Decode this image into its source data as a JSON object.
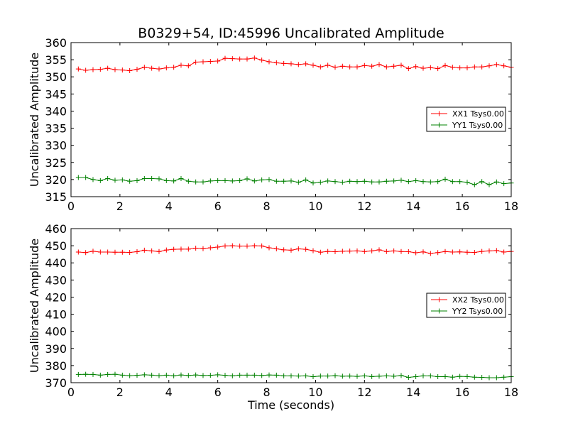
{
  "figure": {
    "title": "B0329+54, ID:45996 Uncalibrated Amplitude",
    "xlabel": "Time (seconds)"
  },
  "chart_data": [
    {
      "type": "line",
      "title": "B0329+54, ID:45996 Uncalibrated Amplitude",
      "xlabel": "",
      "ylabel": "Uncalibrated Amplitude",
      "xlim": [
        0,
        18
      ],
      "ylim": [
        315,
        360
      ],
      "xticks": [
        0,
        2,
        4,
        6,
        8,
        10,
        12,
        14,
        16,
        18
      ],
      "yticks": [
        315,
        320,
        325,
        330,
        335,
        340,
        345,
        350,
        355,
        360
      ],
      "grid": false,
      "legend_position": "center-right",
      "x": [
        0.3,
        0.6,
        0.9,
        1.2,
        1.5,
        1.8,
        2.1,
        2.4,
        2.7,
        3.0,
        3.3,
        3.6,
        3.9,
        4.2,
        4.5,
        4.8,
        5.1,
        5.4,
        5.7,
        6.0,
        6.3,
        6.6,
        6.9,
        7.2,
        7.5,
        7.8,
        8.1,
        8.4,
        8.7,
        9.0,
        9.3,
        9.6,
        9.9,
        10.2,
        10.5,
        10.8,
        11.1,
        11.4,
        11.7,
        12.0,
        12.3,
        12.6,
        12.9,
        13.2,
        13.5,
        13.8,
        14.1,
        14.4,
        14.7,
        15.0,
        15.3,
        15.6,
        15.9,
        16.2,
        16.5,
        16.8,
        17.1,
        17.4,
        17.7,
        18.0
      ],
      "series": [
        {
          "name": "XX1 Tsys0.00",
          "color": "#ff0000",
          "values": [
            352.3,
            351.9,
            352.1,
            352.2,
            352.5,
            352.1,
            352.0,
            351.8,
            352.2,
            352.8,
            352.5,
            352.3,
            352.6,
            352.8,
            353.4,
            353.2,
            354.3,
            354.4,
            354.5,
            354.6,
            355.4,
            355.3,
            355.2,
            355.2,
            355.5,
            354.9,
            354.4,
            354.1,
            353.9,
            353.8,
            353.6,
            353.8,
            353.4,
            352.9,
            353.4,
            352.8,
            353.1,
            352.9,
            352.9,
            353.3,
            353.1,
            353.6,
            352.9,
            353.1,
            353.4,
            352.4,
            353.0,
            352.5,
            352.7,
            352.4,
            353.3,
            352.8,
            352.6,
            352.6,
            352.9,
            352.9,
            353.2,
            353.6,
            353.2,
            352.8
          ]
        },
        {
          "name": "YY1 Tsys0.00",
          "color": "#008000",
          "values": [
            320.6,
            320.6,
            320.0,
            319.7,
            320.3,
            319.8,
            319.9,
            319.5,
            319.7,
            320.3,
            320.3,
            320.2,
            319.7,
            319.6,
            320.3,
            319.5,
            319.3,
            319.3,
            319.6,
            319.7,
            319.7,
            319.6,
            319.7,
            320.2,
            319.6,
            319.9,
            320.0,
            319.5,
            319.5,
            319.6,
            319.2,
            319.9,
            319.0,
            319.2,
            319.6,
            319.4,
            319.2,
            319.5,
            319.4,
            319.5,
            319.3,
            319.3,
            319.5,
            319.6,
            319.8,
            319.4,
            319.7,
            319.4,
            319.3,
            319.4,
            320.1,
            319.4,
            319.4,
            319.2,
            318.5,
            319.4,
            318.5,
            319.3,
            318.8,
            319.0
          ]
        }
      ]
    },
    {
      "type": "line",
      "title": "",
      "xlabel": "Time (seconds)",
      "ylabel": "Uncalibrated Amplitude",
      "xlim": [
        0,
        18
      ],
      "ylim": [
        370,
        460
      ],
      "xticks": [
        0,
        2,
        4,
        6,
        8,
        10,
        12,
        14,
        16,
        18
      ],
      "yticks": [
        370,
        380,
        390,
        400,
        410,
        420,
        430,
        440,
        450,
        460
      ],
      "grid": false,
      "legend_position": "center-right",
      "x": [
        0.3,
        0.6,
        0.9,
        1.2,
        1.5,
        1.8,
        2.1,
        2.4,
        2.7,
        3.0,
        3.3,
        3.6,
        3.9,
        4.2,
        4.5,
        4.8,
        5.1,
        5.4,
        5.7,
        6.0,
        6.3,
        6.6,
        6.9,
        7.2,
        7.5,
        7.8,
        8.1,
        8.4,
        8.7,
        9.0,
        9.3,
        9.6,
        9.9,
        10.2,
        10.5,
        10.8,
        11.1,
        11.4,
        11.7,
        12.0,
        12.3,
        12.6,
        12.9,
        13.2,
        13.5,
        13.8,
        14.1,
        14.4,
        14.7,
        15.0,
        15.3,
        15.6,
        15.9,
        16.2,
        16.5,
        16.8,
        17.1,
        17.4,
        17.7,
        18.0
      ],
      "series": [
        {
          "name": "XX2 Tsys0.00",
          "color": "#ff0000",
          "values": [
            446.3,
            446.0,
            446.8,
            446.3,
            446.3,
            446.2,
            446.2,
            446.1,
            446.5,
            447.4,
            447.0,
            446.6,
            447.5,
            447.9,
            448.0,
            448.0,
            448.6,
            448.3,
            448.8,
            449.2,
            449.9,
            450.0,
            449.8,
            449.8,
            450.0,
            449.9,
            448.8,
            448.2,
            447.6,
            447.4,
            448.2,
            447.9,
            447.1,
            446.2,
            446.7,
            446.5,
            446.8,
            446.9,
            447.0,
            446.6,
            447.0,
            447.6,
            446.6,
            447.0,
            446.6,
            446.5,
            445.9,
            446.4,
            445.5,
            446.0,
            446.6,
            446.3,
            446.4,
            446.2,
            446.1,
            446.7,
            447.0,
            447.2,
            446.3,
            446.7
          ]
        },
        {
          "name": "YY2 Tsys0.00",
          "color": "#008000",
          "values": [
            374.8,
            374.9,
            374.8,
            374.4,
            374.8,
            374.9,
            374.4,
            374.1,
            374.3,
            374.6,
            374.4,
            374.1,
            374.4,
            374.0,
            374.5,
            374.2,
            374.5,
            374.2,
            374.3,
            374.6,
            374.3,
            374.0,
            374.4,
            374.4,
            374.4,
            374.2,
            374.5,
            374.4,
            374.0,
            374.0,
            373.9,
            374.0,
            373.5,
            373.9,
            373.9,
            374.1,
            373.8,
            373.9,
            373.7,
            374.0,
            373.6,
            373.8,
            374.0,
            373.8,
            374.2,
            373.1,
            373.5,
            374.0,
            374.0,
            373.5,
            373.6,
            373.2,
            373.7,
            373.6,
            373.2,
            373.1,
            372.9,
            372.9,
            373.2,
            373.5
          ]
        }
      ]
    }
  ]
}
